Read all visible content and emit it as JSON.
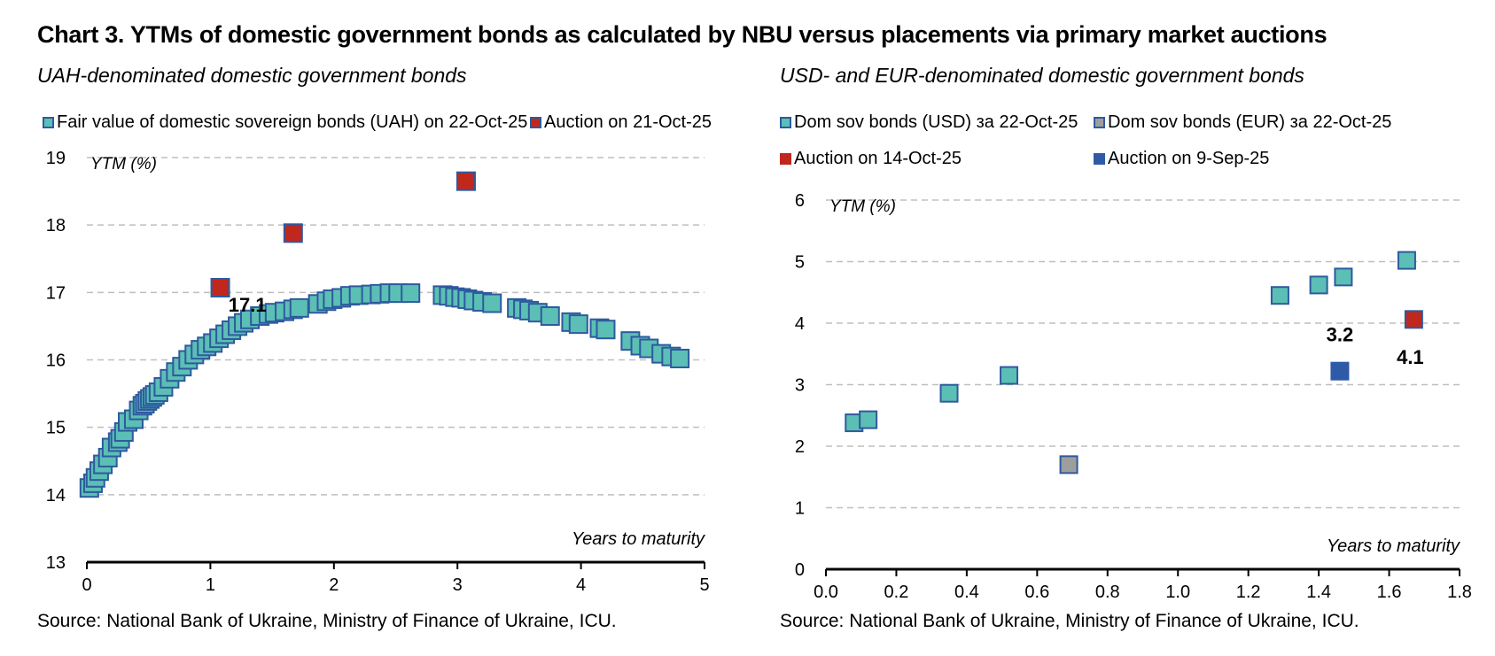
{
  "title": "Chart 3. YTMs of domestic government bonds as calculated by NBU versus placements via primary market auctions",
  "colors": {
    "fair_fill": "#5BBFB5",
    "marker_border": "#2E5A9E",
    "auction_red": "#C0271D",
    "auction_blue": "#2E5AA8",
    "eur_fill": "#9E9E9E",
    "grid": "#BFBFBF"
  },
  "chart_data": [
    {
      "type": "scatter",
      "title": "UAH-denominated domestic government bonds",
      "xlabel": "Years to maturity",
      "ylabel": "YTM (%)",
      "xlim": [
        0,
        5
      ],
      "ylim": [
        13,
        19
      ],
      "xticks": [
        "0",
        "1",
        "2",
        "3",
        "4",
        "5"
      ],
      "yticks": [
        "13",
        "14",
        "15",
        "16",
        "17",
        "18",
        "19"
      ],
      "grid": true,
      "legend_position": "top",
      "series": [
        {
          "name": "Fair value of domestic sovereign bonds (UAH) on 22-Oct-25",
          "color": "#5BBFB5",
          "x": [
            0.02,
            0.05,
            0.07,
            0.1,
            0.13,
            0.17,
            0.2,
            0.25,
            0.27,
            0.3,
            0.33,
            0.38,
            0.42,
            0.45,
            0.47,
            0.49,
            0.51,
            0.53,
            0.55,
            0.58,
            0.62,
            0.67,
            0.72,
            0.77,
            0.82,
            0.87,
            0.92,
            0.97,
            1.02,
            1.07,
            1.12,
            1.17,
            1.22,
            1.27,
            1.32,
            1.4,
            1.47,
            1.52,
            1.6,
            1.67,
            1.72,
            1.87,
            1.94,
            1.99,
            2.06,
            2.13,
            2.2,
            2.3,
            2.37,
            2.45,
            2.52,
            2.62,
            2.88,
            2.93,
            2.98,
            3.03,
            3.08,
            3.13,
            3.2,
            3.28,
            3.48,
            3.53,
            3.58,
            3.65,
            3.75,
            3.92,
            3.98,
            4.15,
            4.2,
            4.4,
            4.48,
            4.55,
            4.65,
            4.73,
            4.8
          ],
          "y": [
            14.1,
            14.17,
            14.25,
            14.35,
            14.45,
            14.55,
            14.7,
            14.78,
            14.83,
            14.93,
            15.08,
            15.12,
            15.25,
            15.32,
            15.35,
            15.39,
            15.42,
            15.45,
            15.48,
            15.52,
            15.6,
            15.72,
            15.82,
            15.9,
            16.0,
            16.08,
            16.15,
            16.2,
            16.25,
            16.32,
            16.38,
            16.44,
            16.5,
            16.55,
            16.6,
            16.65,
            16.68,
            16.7,
            16.72,
            16.75,
            16.77,
            16.83,
            16.87,
            16.9,
            16.92,
            16.95,
            16.96,
            16.97,
            16.98,
            16.99,
            16.99,
            16.99,
            16.96,
            16.95,
            16.93,
            16.92,
            16.9,
            16.88,
            16.86,
            16.84,
            16.77,
            16.75,
            16.73,
            16.7,
            16.65,
            16.56,
            16.53,
            16.47,
            16.45,
            16.28,
            16.21,
            16.17,
            16.09,
            16.05,
            16.02
          ]
        },
        {
          "name": "Auction on 21-Oct-25",
          "color": "#C0271D",
          "x": [
            1.08,
            1.67,
            3.07
          ],
          "y": [
            17.07,
            17.88,
            18.65
          ]
        }
      ],
      "annotations": [
        {
          "text": "17.1",
          "x": 1.3,
          "y": 16.82
        }
      ],
      "source": "Source: National Bank of Ukraine, Ministry of Finance of Ukraine, ICU."
    },
    {
      "type": "scatter",
      "title": "USD- and EUR-denominated domestic government bonds",
      "xlabel": "Years to maturity",
      "ylabel": "YTM (%)",
      "xlim": [
        0,
        1.8
      ],
      "ylim": [
        0,
        6
      ],
      "xticks": [
        "0.0",
        "0.2",
        "0.4",
        "0.6",
        "0.8",
        "1.0",
        "1.2",
        "1.4",
        "1.6",
        "1.8"
      ],
      "yticks": [
        "0",
        "1",
        "2",
        "3",
        "4",
        "5",
        "6"
      ],
      "grid": true,
      "legend_position": "top",
      "series": [
        {
          "name": "Dom sov bonds (USD) за 22-Oct-25",
          "color": "#5BBFB5",
          "x": [
            0.08,
            0.12,
            0.35,
            0.52,
            1.29,
            1.4,
            1.47,
            1.65
          ],
          "y": [
            2.38,
            2.43,
            2.86,
            3.15,
            4.45,
            4.62,
            4.75,
            5.02
          ]
        },
        {
          "name": "Dom sov bonds (EUR) за 22-Oct-25",
          "color": "#9E9E9E",
          "x": [
            0.69
          ],
          "y": [
            1.7
          ]
        },
        {
          "name": "Auction on 14-Oct-25",
          "color": "#C0271D",
          "x": [
            1.67
          ],
          "y": [
            4.06
          ]
        },
        {
          "name": "Auction on 9-Sep-25",
          "color": "#2E5AA8",
          "x": [
            1.46
          ],
          "y": [
            3.22
          ]
        }
      ],
      "annotations": [
        {
          "text": "3.2",
          "x": 1.46,
          "y": 3.82
        },
        {
          "text": "4.1",
          "x": 1.66,
          "y": 3.45
        }
      ],
      "source": "Source: National Bank of Ukraine, Ministry of Finance of Ukraine, ICU."
    }
  ]
}
